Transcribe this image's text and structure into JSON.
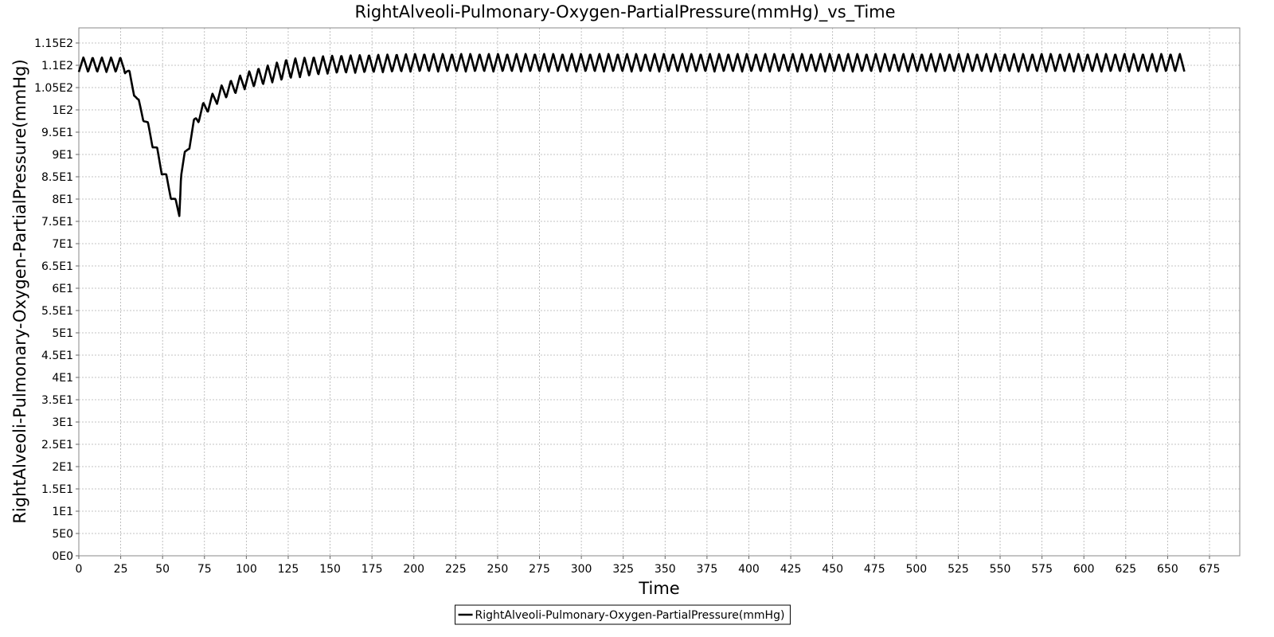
{
  "chart_data": {
    "type": "line",
    "title": "RightAlveoli-Pulmonary-Oxygen-PartialPressure(mmHg)_vs_Time",
    "xlabel": "Time",
    "ylabel": "RightAlveoli-Pulmonary-Oxygen-PartialPressure(mmHg)",
    "xlim": [
      0,
      690
    ],
    "ylim": [
      0,
      119
    ],
    "grid": true,
    "legend_position": "bottom-center",
    "x_ticks": [
      "0",
      "25",
      "50",
      "75",
      "100",
      "125",
      "150",
      "175",
      "200",
      "225",
      "250",
      "275",
      "300",
      "325",
      "350",
      "375",
      "400",
      "425",
      "450",
      "475",
      "500",
      "525",
      "550",
      "575",
      "600",
      "625",
      "650",
      "675"
    ],
    "y_ticks": [
      "0E0",
      "5E0",
      "1E1",
      "1.5E1",
      "2E1",
      "2.5E1",
      "3E1",
      "3.5E1",
      "4E1",
      "4.5E1",
      "5E1",
      "5.5E1",
      "6E1",
      "6.5E1",
      "7E1",
      "7.5E1",
      "8E1",
      "8.5E1",
      "9E1",
      "9.5E1",
      "1E2",
      "1.05E2",
      "1.1E2",
      "1.15E2"
    ],
    "series": [
      {
        "name": "RightAlveoli-Pulmonary-Oxygen-PartialPressure(mmHg)",
        "color": "#000000",
        "envelope_points": [
          {
            "x": 0,
            "low": 108.5,
            "high": 111.8
          },
          {
            "x": 27,
            "low": 108.5,
            "high": 111.8
          },
          {
            "x": 30,
            "low": 106.5,
            "high": 109.0
          },
          {
            "x": 35,
            "low": 101.0,
            "high": 103.0
          },
          {
            "x": 40,
            "low": 96.0,
            "high": 98.5
          },
          {
            "x": 45,
            "low": 90.5,
            "high": 93.5
          },
          {
            "x": 50,
            "low": 85.0,
            "high": 88.0
          },
          {
            "x": 55,
            "low": 80.0,
            "high": 82.5
          },
          {
            "x": 60,
            "low": 75.8,
            "high": 78.0
          },
          {
            "x": 61,
            "low": 84.5,
            "high": 87.5
          },
          {
            "x": 65,
            "low": 90.0,
            "high": 93.0
          },
          {
            "x": 70,
            "low": 96.5,
            "high": 99.5
          },
          {
            "x": 75,
            "low": 98.8,
            "high": 102.0
          },
          {
            "x": 85,
            "low": 102.2,
            "high": 105.5
          },
          {
            "x": 100,
            "low": 104.8,
            "high": 108.5
          },
          {
            "x": 125,
            "low": 107.0,
            "high": 111.5
          },
          {
            "x": 150,
            "low": 108.2,
            "high": 112.2
          },
          {
            "x": 200,
            "low": 108.6,
            "high": 112.6
          },
          {
            "x": 660,
            "low": 108.6,
            "high": 112.6
          }
        ],
        "period": 5.5
      }
    ]
  }
}
